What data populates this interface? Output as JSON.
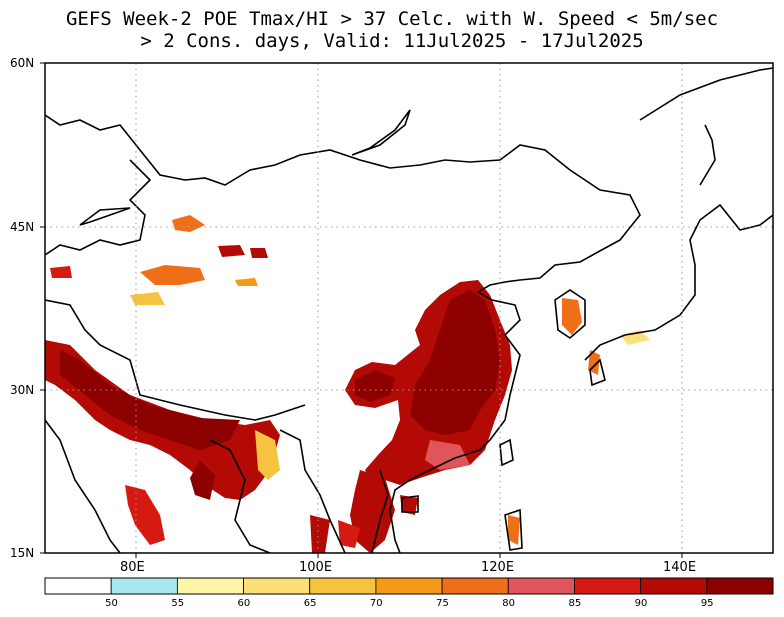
{
  "title": {
    "line1": "GEFS Week-2 POE Tmax/HI > 37 Celc. with W. Speed < 5m/sec",
    "line2": "> 2 Cons. days, Valid: 11Jul2025 - 17Jul2025"
  },
  "axes": {
    "lat_labels": [
      "60N",
      "45N",
      "30N",
      "15N"
    ],
    "lon_labels": [
      "80E",
      "100E",
      "120E",
      "140E"
    ],
    "lat_range": [
      15,
      60
    ],
    "lon_range": [
      70,
      150
    ],
    "grid": "dotted"
  },
  "colorbar": {
    "ticks": [
      "50",
      "55",
      "60",
      "65",
      "70",
      "75",
      "80",
      "85",
      "90",
      "95"
    ],
    "colors": [
      "#ffffff",
      "#a8e6f0",
      "#fff5a8",
      "#fbe07a",
      "#f6c340",
      "#f59a18",
      "#ef6e18",
      "#e0555c",
      "#d61a12",
      "#b30a05",
      "#8c0000"
    ]
  }
}
